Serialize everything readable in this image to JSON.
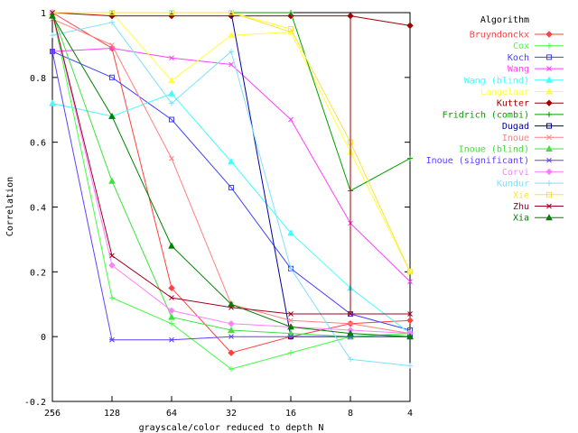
{
  "chart_data": {
    "type": "line",
    "title": "",
    "xlabel": "grayscale/color reduced to depth N",
    "ylabel": "Correlation",
    "x": [
      256,
      128,
      64,
      32,
      16,
      8,
      4
    ],
    "x_ticks": [
      "256",
      "128",
      "64",
      "32",
      "16",
      "8",
      "4"
    ],
    "x_scale": "log2-reversed",
    "ylim": [
      -0.2,
      1
    ],
    "y_ticks": [
      "-0.2",
      "0",
      "0.2",
      "0.4",
      "0.6",
      "0.8",
      "1"
    ],
    "grid": false,
    "legend_title": "Algorithm",
    "legend_position": "right",
    "series": [
      {
        "name": "Bruyndonckx",
        "color": "#ff4040",
        "marker": "diamond",
        "values": [
          1.0,
          0.89,
          0.15,
          -0.05,
          0.0,
          0.04,
          0.05
        ]
      },
      {
        "name": "Cox",
        "color": "#40ff40",
        "marker": "plus",
        "values": [
          1.0,
          0.12,
          0.04,
          -0.1,
          -0.05,
          0.0,
          0.01
        ]
      },
      {
        "name": "Koch",
        "color": "#4040ff",
        "marker": "square",
        "values": [
          0.88,
          0.8,
          0.67,
          0.46,
          0.21,
          0.07,
          0.02
        ]
      },
      {
        "name": "Wang",
        "color": "#ff40ff",
        "marker": "cross",
        "values": [
          0.88,
          0.89,
          0.86,
          0.84,
          0.67,
          0.35,
          0.17
        ]
      },
      {
        "name": "Wang (blind)",
        "color": "#40ffff",
        "marker": "triangle",
        "values": [
          0.72,
          0.68,
          0.75,
          0.54,
          0.32,
          0.15,
          0.01
        ]
      },
      {
        "name": "Langelaar",
        "color": "#ffff40",
        "marker": "triangle",
        "values": [
          1.0,
          1.0,
          0.79,
          0.93,
          0.94,
          0.57,
          0.2
        ]
      },
      {
        "name": "Kutter",
        "color": "#a00000",
        "marker": "diamond",
        "values": [
          1.0,
          0.99,
          0.99,
          0.99,
          0.99,
          0.99,
          0.96
        ]
      },
      {
        "name": "Fridrich (combi)",
        "color": "#00a000",
        "marker": "plus",
        "values": [
          1.0,
          1.0,
          1.0,
          1.0,
          1.0,
          0.45,
          0.55
        ]
      },
      {
        "name": "Dugad",
        "color": "#0000a0",
        "marker": "square",
        "values": [
          1.0,
          1.0,
          1.0,
          1.0,
          0.0,
          0.0,
          0.0
        ]
      },
      {
        "name": "Inoue",
        "color": "#ff8080",
        "marker": "cross",
        "values": [
          0.98,
          0.9,
          0.55,
          0.1,
          0.05,
          0.04,
          0.01
        ]
      },
      {
        "name": "Inoue (blind)",
        "color": "#40e040",
        "marker": "triangle",
        "values": [
          1.0,
          0.48,
          0.06,
          0.02,
          0.01,
          0.0,
          0.0
        ]
      },
      {
        "name": "Inoue (significant)",
        "color": "#6040ff",
        "marker": "star",
        "values": [
          0.88,
          -0.01,
          -0.01,
          0.0,
          0.0,
          0.0,
          0.0
        ]
      },
      {
        "name": "Corvi",
        "color": "#ff80ff",
        "marker": "diamond",
        "values": [
          1.0,
          0.22,
          0.08,
          0.04,
          0.03,
          0.02,
          0.01
        ]
      },
      {
        "name": "Kundur",
        "color": "#80e0ff",
        "marker": "plus",
        "values": [
          0.93,
          0.97,
          0.72,
          0.88,
          0.21,
          -0.07,
          -0.09
        ]
      },
      {
        "name": "Xie",
        "color": "#ffe040",
        "marker": "square",
        "values": [
          1.0,
          1.0,
          1.0,
          1.0,
          0.95,
          0.6,
          0.2
        ]
      },
      {
        "name": "Zhu",
        "color": "#a00020",
        "marker": "cross",
        "values": [
          1.0,
          0.25,
          0.12,
          0.09,
          0.07,
          0.07,
          0.07
        ]
      },
      {
        "name": "Xia",
        "color": "#008000",
        "marker": "triangle",
        "values": [
          0.99,
          0.68,
          0.28,
          0.1,
          0.03,
          0.01,
          0.0
        ]
      }
    ],
    "extra_segments": [
      {
        "series": "Kutter",
        "x": [
          8,
          8
        ],
        "values": [
          0.07,
          0.99
        ]
      },
      {
        "series": "Langelaar",
        "x": [
          32,
          16
        ],
        "values": [
          1.0,
          0.95
        ]
      },
      {
        "series": "Xie",
        "x": [
          32,
          16
        ],
        "values": [
          1.0,
          0.94
        ]
      }
    ]
  }
}
